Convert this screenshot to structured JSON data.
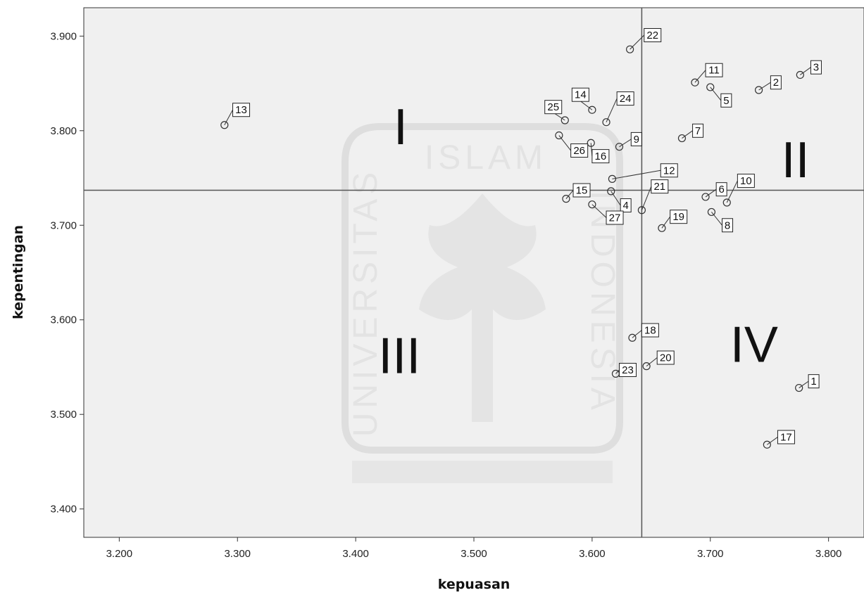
{
  "chart_data": {
    "type": "scatter",
    "xlabel": "kepuasan",
    "ylabel": "kepentingan",
    "xlim": [
      3.17,
      3.83
    ],
    "ylim": [
      3.37,
      3.93
    ],
    "x_ticks": [
      {
        "v": 3.2,
        "label": "3.200"
      },
      {
        "v": 3.3,
        "label": "3.300"
      },
      {
        "v": 3.4,
        "label": "3.400"
      },
      {
        "v": 3.5,
        "label": "3.500"
      },
      {
        "v": 3.6,
        "label": "3.600"
      },
      {
        "v": 3.7,
        "label": "3.700"
      },
      {
        "v": 3.8,
        "label": "3.800"
      }
    ],
    "y_ticks": [
      {
        "v": 3.4,
        "label": "3.400"
      },
      {
        "v": 3.5,
        "label": "3.500"
      },
      {
        "v": 3.6,
        "label": "3.600"
      },
      {
        "v": 3.7,
        "label": "3.700"
      },
      {
        "v": 3.8,
        "label": "3.800"
      },
      {
        "v": 3.9,
        "label": "3.900"
      }
    ],
    "ref_x": 3.642,
    "ref_y": 3.737,
    "points": [
      {
        "label": "1",
        "x": 3.775,
        "y": 3.528,
        "lx": 3.783,
        "ly": 3.535
      },
      {
        "label": "2",
        "x": 3.741,
        "y": 3.843,
        "lx": 3.751,
        "ly": 3.851
      },
      {
        "label": "3",
        "x": 3.776,
        "y": 3.859,
        "lx": 3.785,
        "ly": 3.867
      },
      {
        "label": "4",
        "x": 3.616,
        "y": 3.736,
        "lx": 3.624,
        "ly": 3.721
      },
      {
        "label": "5",
        "x": 3.7,
        "y": 3.846,
        "lx": 3.709,
        "ly": 3.832
      },
      {
        "label": "6",
        "x": 3.696,
        "y": 3.73,
        "lx": 3.705,
        "ly": 3.738
      },
      {
        "label": "7",
        "x": 3.676,
        "y": 3.792,
        "lx": 3.685,
        "ly": 3.8
      },
      {
        "label": "8",
        "x": 3.701,
        "y": 3.714,
        "lx": 3.71,
        "ly": 3.7
      },
      {
        "label": "9",
        "x": 3.623,
        "y": 3.783,
        "lx": 3.633,
        "ly": 3.791
      },
      {
        "label": "10",
        "x": 3.714,
        "y": 3.724,
        "lx": 3.723,
        "ly": 3.747
      },
      {
        "label": "11",
        "x": 3.687,
        "y": 3.851,
        "lx": 3.696,
        "ly": 3.864
      },
      {
        "label": "12",
        "x": 3.617,
        "y": 3.749,
        "lx": 3.658,
        "ly": 3.758
      },
      {
        "label": "13",
        "x": 3.289,
        "y": 3.806,
        "lx": 3.296,
        "ly": 3.822
      },
      {
        "label": "14",
        "x": 3.6,
        "y": 3.822,
        "lx": 3.583,
        "ly": 3.838
      },
      {
        "label": "15",
        "x": 3.578,
        "y": 3.728,
        "lx": 3.584,
        "ly": 3.737
      },
      {
        "label": "16",
        "x": 3.599,
        "y": 3.787,
        "lx": 3.6,
        "ly": 3.773
      },
      {
        "label": "17",
        "x": 3.748,
        "y": 3.468,
        "lx": 3.757,
        "ly": 3.476
      },
      {
        "label": "18",
        "x": 3.634,
        "y": 3.581,
        "lx": 3.642,
        "ly": 3.589
      },
      {
        "label": "19",
        "x": 3.659,
        "y": 3.697,
        "lx": 3.666,
        "ly": 3.709
      },
      {
        "label": "20",
        "x": 3.646,
        "y": 3.551,
        "lx": 3.655,
        "ly": 3.56
      },
      {
        "label": "21",
        "x": 3.642,
        "y": 3.716,
        "lx": 3.65,
        "ly": 3.741
      },
      {
        "label": "22",
        "x": 3.632,
        "y": 3.886,
        "lx": 3.644,
        "ly": 3.901
      },
      {
        "label": "23",
        "x": 3.62,
        "y": 3.543,
        "lx": 3.623,
        "ly": 3.547
      },
      {
        "label": "24",
        "x": 3.612,
        "y": 3.809,
        "lx": 3.621,
        "ly": 3.834
      },
      {
        "label": "25",
        "x": 3.577,
        "y": 3.811,
        "lx": 3.56,
        "ly": 3.825
      },
      {
        "label": "26",
        "x": 3.572,
        "y": 3.795,
        "lx": 3.582,
        "ly": 3.779
      },
      {
        "label": "27",
        "x": 3.6,
        "y": 3.722,
        "lx": 3.612,
        "ly": 3.708
      }
    ],
    "quadrants": [
      {
        "label": "I",
        "x": 3.438,
        "y": 3.805
      },
      {
        "label": "II",
        "x": 3.772,
        "y": 3.77
      },
      {
        "label": "III",
        "x": 3.437,
        "y": 3.563
      },
      {
        "label": "IV",
        "x": 3.737,
        "y": 3.575
      }
    ]
  },
  "watermark": {
    "top_text": "ISLAM",
    "left_text": "UNIVERSITAS",
    "right_text": "INDONESIA"
  }
}
